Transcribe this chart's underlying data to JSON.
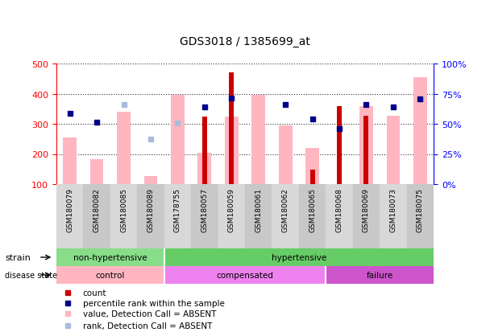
{
  "title": "GDS3018 / 1385699_at",
  "samples": [
    "GSM180079",
    "GSM180082",
    "GSM180085",
    "GSM180089",
    "GSM178755",
    "GSM180057",
    "GSM180059",
    "GSM180061",
    "GSM180062",
    "GSM180065",
    "GSM180068",
    "GSM180069",
    "GSM180073",
    "GSM180075"
  ],
  "red_bars": [
    null,
    null,
    null,
    null,
    null,
    325,
    470,
    null,
    null,
    148,
    360,
    328,
    null,
    null
  ],
  "pink_bars": [
    255,
    183,
    340,
    128,
    395,
    205,
    325,
    395,
    295,
    220,
    null,
    360,
    328,
    455
  ],
  "blue_squares": [
    335,
    305,
    null,
    null,
    null,
    355,
    385,
    null,
    363,
    317,
    283,
    363,
    355,
    383
  ],
  "light_blue_squares": [
    null,
    null,
    365,
    250,
    302,
    null,
    null,
    null,
    null,
    null,
    null,
    null,
    null,
    null
  ],
  "ylim_left": [
    100,
    500
  ],
  "ylim_right": [
    0,
    100
  ],
  "y_left_ticks": [
    100,
    200,
    300,
    400,
    500
  ],
  "y_right_ticks": [
    0,
    25,
    50,
    75,
    100
  ],
  "y_right_labels": [
    "0%",
    "25%",
    "50%",
    "75%",
    "100%"
  ],
  "bar_bottom": 100,
  "pink_color": "#FFB6C1",
  "red_color": "#CC0000",
  "blue_color": "#00008B",
  "light_blue_color": "#AABBDD",
  "strain_nh_color": "#88DD88",
  "strain_h_color": "#66CC66",
  "control_color": "#FFB6C1",
  "compensated_color": "#EE82EE",
  "failure_color": "#CC55CC",
  "col_even": "#D8D8D8",
  "col_odd": "#C8C8C8"
}
